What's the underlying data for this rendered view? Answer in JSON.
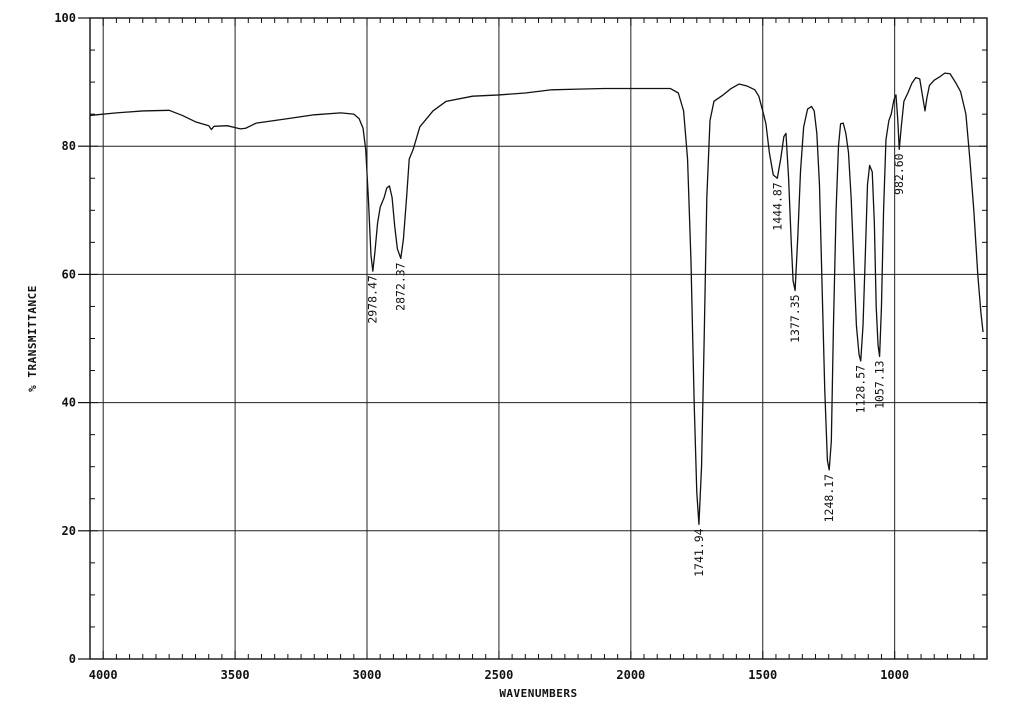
{
  "chart_data": {
    "type": "line",
    "title": "",
    "xlabel": "WAVENUMBERS",
    "ylabel": "% TRANSMITTANCE",
    "xlim": [
      4050,
      650
    ],
    "ylim": [
      0,
      100
    ],
    "grid": true,
    "x_ticks": [
      {
        "value": 4000,
        "label": "4000"
      },
      {
        "value": 3500,
        "label": "3500"
      },
      {
        "value": 3000,
        "label": "3000"
      },
      {
        "value": 2500,
        "label": "2500"
      },
      {
        "value": 2000,
        "label": "2000"
      },
      {
        "value": 1500,
        "label": "1500"
      },
      {
        "value": 1000,
        "label": "1000"
      }
    ],
    "y_ticks": [
      {
        "value": 0,
        "label": "0"
      },
      {
        "value": 20,
        "label": "20"
      },
      {
        "value": 40,
        "label": "40"
      },
      {
        "value": 60,
        "label": "60"
      },
      {
        "value": 80,
        "label": "80"
      },
      {
        "value": 100,
        "label": "100"
      }
    ],
    "series": [
      {
        "values": [
          [
            4050,
            84.8
          ],
          [
            3950,
            85.2
          ],
          [
            3850,
            85.5
          ],
          [
            3750,
            85.6
          ],
          [
            3700,
            84.8
          ],
          [
            3650,
            83.8
          ],
          [
            3600,
            83.2
          ],
          [
            3590,
            82.6
          ],
          [
            3580,
            83.1
          ],
          [
            3530,
            83.2
          ],
          [
            3480,
            82.7
          ],
          [
            3460,
            82.8
          ],
          [
            3420,
            83.6
          ],
          [
            3300,
            84.3
          ],
          [
            3200,
            84.9
          ],
          [
            3100,
            85.2
          ],
          [
            3050,
            85.0
          ],
          [
            3030,
            84.3
          ],
          [
            3015,
            82.8
          ],
          [
            3005,
            79.5
          ],
          [
            2995,
            72.0
          ],
          [
            2985,
            63.0
          ],
          [
            2978,
            60.5
          ],
          [
            2970,
            63.5
          ],
          [
            2960,
            68.0
          ],
          [
            2950,
            70.5
          ],
          [
            2935,
            72.0
          ],
          [
            2925,
            73.5
          ],
          [
            2915,
            73.8
          ],
          [
            2905,
            72.0
          ],
          [
            2895,
            67.5
          ],
          [
            2885,
            64.0
          ],
          [
            2872,
            62.5
          ],
          [
            2862,
            65.5
          ],
          [
            2850,
            72.0
          ],
          [
            2840,
            78.0
          ],
          [
            2825,
            79.5
          ],
          [
            2800,
            83.0
          ],
          [
            2750,
            85.5
          ],
          [
            2700,
            87.0
          ],
          [
            2600,
            87.8
          ],
          [
            2500,
            88.0
          ],
          [
            2400,
            88.3
          ],
          [
            2300,
            88.8
          ],
          [
            2200,
            88.9
          ],
          [
            2100,
            89.0
          ],
          [
            1950,
            89.0
          ],
          [
            1850,
            89.0
          ],
          [
            1820,
            88.3
          ],
          [
            1800,
            85.5
          ],
          [
            1785,
            78.0
          ],
          [
            1772,
            62.0
          ],
          [
            1760,
            40.0
          ],
          [
            1750,
            26.0
          ],
          [
            1741.94,
            21.0
          ],
          [
            1732,
            30.0
          ],
          [
            1722,
            50.0
          ],
          [
            1712,
            72.0
          ],
          [
            1700,
            84.0
          ],
          [
            1685,
            87.0
          ],
          [
            1650,
            88.0
          ],
          [
            1620,
            89.0
          ],
          [
            1590,
            89.7
          ],
          [
            1560,
            89.4
          ],
          [
            1530,
            88.8
          ],
          [
            1515,
            87.8
          ],
          [
            1500,
            85.5
          ],
          [
            1488,
            83.5
          ],
          [
            1475,
            79.0
          ],
          [
            1460,
            75.5
          ],
          [
            1444.87,
            75.0
          ],
          [
            1432,
            78.0
          ],
          [
            1420,
            81.5
          ],
          [
            1412,
            82.0
          ],
          [
            1402,
            75.0
          ],
          [
            1392,
            65.0
          ],
          [
            1385,
            59.0
          ],
          [
            1377.35,
            57.5
          ],
          [
            1367,
            66.0
          ],
          [
            1357,
            76.0
          ],
          [
            1345,
            83.0
          ],
          [
            1330,
            85.8
          ],
          [
            1315,
            86.2
          ],
          [
            1305,
            85.5
          ],
          [
            1295,
            82.0
          ],
          [
            1285,
            74.0
          ],
          [
            1275,
            58.0
          ],
          [
            1265,
            42.0
          ],
          [
            1255,
            31.0
          ],
          [
            1248.17,
            29.5
          ],
          [
            1240,
            34.0
          ],
          [
            1232,
            52.0
          ],
          [
            1222,
            70.0
          ],
          [
            1213,
            80.0
          ],
          [
            1205,
            83.5
          ],
          [
            1195,
            83.6
          ],
          [
            1185,
            82.0
          ],
          [
            1175,
            79.0
          ],
          [
            1165,
            72.0
          ],
          [
            1155,
            62.0
          ],
          [
            1145,
            52.0
          ],
          [
            1135,
            47.5
          ],
          [
            1128.57,
            46.5
          ],
          [
            1120,
            52.0
          ],
          [
            1112,
            62.0
          ],
          [
            1103,
            74.0
          ],
          [
            1095,
            77.0
          ],
          [
            1085,
            76.0
          ],
          [
            1077,
            68.0
          ],
          [
            1070,
            55.0
          ],
          [
            1063,
            49.0
          ],
          [
            1057.13,
            47.2
          ],
          [
            1050,
            55.0
          ],
          [
            1042,
            70.0
          ],
          [
            1033,
            81.0
          ],
          [
            1022,
            84.0
          ],
          [
            1013,
            85.0
          ],
          [
            1003,
            87.2
          ],
          [
            995,
            88.0
          ],
          [
            988,
            84.0
          ],
          [
            982.6,
            79.5
          ],
          [
            975,
            83.0
          ],
          [
            965,
            87.0
          ],
          [
            950,
            88.3
          ],
          [
            935,
            89.8
          ],
          [
            920,
            90.7
          ],
          [
            905,
            90.5
          ],
          [
            895,
            88.0
          ],
          [
            885,
            85.5
          ],
          [
            878,
            87.5
          ],
          [
            868,
            89.5
          ],
          [
            850,
            90.3
          ],
          [
            830,
            90.8
          ],
          [
            810,
            91.4
          ],
          [
            790,
            91.3
          ],
          [
            770,
            90.0
          ],
          [
            750,
            88.5
          ],
          [
            730,
            85.0
          ],
          [
            715,
            78.0
          ],
          [
            700,
            70.0
          ],
          [
            685,
            60.0
          ],
          [
            673,
            54.0
          ],
          [
            665,
            51.0
          ]
        ]
      }
    ],
    "peak_labels": [
      {
        "x": 2978.47,
        "y": 60.5,
        "label": "2978.47"
      },
      {
        "x": 2872.37,
        "y": 62.5,
        "label": "2872.37"
      },
      {
        "x": 1741.94,
        "y": 21.0,
        "label": "1741.94"
      },
      {
        "x": 1444.87,
        "y": 75.0,
        "label": "1444.87"
      },
      {
        "x": 1377.35,
        "y": 57.5,
        "label": "1377.35"
      },
      {
        "x": 1248.17,
        "y": 29.5,
        "label": "1248.17"
      },
      {
        "x": 1128.57,
        "y": 46.5,
        "label": "1128.57"
      },
      {
        "x": 1057.13,
        "y": 47.2,
        "label": "1057.13"
      },
      {
        "x": 982.6,
        "y": 79.5,
        "label": "982.60"
      }
    ],
    "colors": {
      "line": "#111111",
      "grid": "#222222",
      "background": "#ffffff"
    }
  }
}
